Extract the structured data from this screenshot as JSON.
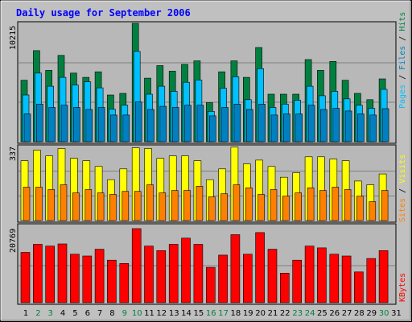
{
  "title": "Daily usage for September 2006",
  "colors": {
    "background": "#C0C0C0",
    "plot": "#B8B8B8",
    "grid": "#808080",
    "title": "#0000FF",
    "hits": "#008040",
    "files": "#00C0FF",
    "pages": "#0080C0",
    "visits": "#FFFF00",
    "sites": "#FF8000",
    "kbytes": "#FF0000",
    "weekday_label": "#000000",
    "weekend_label": "#008040"
  },
  "chart_data": [
    {
      "type": "bar",
      "panel": "hits-files-pages",
      "y_max_label": "10215",
      "ylim": [
        0,
        10215
      ],
      "grid": true,
      "categories": [
        "1",
        "2",
        "3",
        "4",
        "5",
        "6",
        "7",
        "8",
        "9",
        "10",
        "11",
        "12",
        "13",
        "14",
        "15",
        "16",
        "17",
        "18",
        "19",
        "20",
        "21",
        "22",
        "23",
        "24",
        "25",
        "26",
        "27",
        "28",
        "29",
        "30",
        "31"
      ],
      "weekend_days": [
        2,
        3,
        9,
        10,
        16,
        17,
        23,
        24,
        30
      ],
      "series": [
        {
          "name": "Hits",
          "color": "#008040",
          "values": [
            5300,
            7860,
            6160,
            7450,
            5920,
            5550,
            6030,
            4030,
            4170,
            10215,
            5480,
            6570,
            6090,
            6670,
            6980,
            3360,
            6030,
            6980,
            5550,
            8130,
            4100,
            4100,
            4100,
            7090,
            6160,
            6930,
            5300,
            4170,
            3630,
            5420,
            null
          ]
        },
        {
          "name": "Files",
          "color": "#00C0FF",
          "values": [
            4030,
            5920,
            4790,
            5550,
            4890,
            5170,
            4650,
            2810,
            3150,
            7790,
            4100,
            4790,
            4340,
            5130,
            5320,
            2620,
            4610,
            5600,
            3630,
            6300,
            2950,
            3240,
            3570,
            4790,
            3970,
            4340,
            3700,
            3150,
            2880,
            4520,
            null
          ]
        },
        {
          "name": "Pages",
          "color": "#0080C0",
          "values": [
            2400,
            3240,
            2950,
            3150,
            2950,
            2780,
            2950,
            2300,
            2300,
            3430,
            2780,
            3050,
            2950,
            3150,
            3150,
            2230,
            2950,
            3240,
            2780,
            3240,
            2300,
            2400,
            2400,
            3150,
            2780,
            2880,
            2650,
            2400,
            2300,
            2850,
            null
          ]
        }
      ]
    },
    {
      "type": "bar",
      "panel": "visits-sites",
      "y_max_label": "337",
      "ylim": [
        0,
        337
      ],
      "grid": true,
      "categories": [
        "1",
        "2",
        "3",
        "4",
        "5",
        "6",
        "7",
        "8",
        "9",
        "10",
        "11",
        "12",
        "13",
        "14",
        "15",
        "16",
        "17",
        "18",
        "19",
        "20",
        "21",
        "22",
        "23",
        "24",
        "25",
        "26",
        "27",
        "28",
        "29",
        "30",
        "31"
      ],
      "series": [
        {
          "name": "Visits",
          "color": "#FFFF00",
          "values": [
            272,
            320,
            294,
            328,
            283,
            272,
            246,
            186,
            235,
            331,
            328,
            283,
            294,
            294,
            272,
            186,
            235,
            334,
            258,
            275,
            246,
            197,
            218,
            290,
            290,
            280,
            272,
            180,
            163,
            212,
            null
          ]
        },
        {
          "name": "Sites",
          "color": "#FF8000",
          "values": [
            152,
            152,
            141,
            163,
            126,
            141,
            126,
            119,
            133,
            133,
            163,
            126,
            137,
            137,
            156,
            108,
            122,
            163,
            149,
            119,
            141,
            111,
            126,
            149,
            137,
            152,
            141,
            111,
            86,
            137,
            null
          ]
        }
      ]
    },
    {
      "type": "bar",
      "panel": "kbytes",
      "y_max_label": "20769",
      "ylim": [
        0,
        20769
      ],
      "grid": true,
      "categories": [
        "1",
        "2",
        "3",
        "4",
        "5",
        "6",
        "7",
        "8",
        "9",
        "10",
        "11",
        "12",
        "13",
        "14",
        "15",
        "16",
        "17",
        "18",
        "19",
        "20",
        "21",
        "22",
        "23",
        "24",
        "25",
        "26",
        "27",
        "28",
        "29",
        "30",
        "31"
      ],
      "series": [
        {
          "name": "KBytes",
          "color": "#FF0000",
          "values": [
            14100,
            16370,
            15870,
            16470,
            13590,
            13100,
            15000,
            11910,
            11000,
            20769,
            15870,
            14600,
            16370,
            18100,
            16370,
            9920,
            13350,
            19080,
            13590,
            19660,
            15000,
            8280,
            11910,
            15870,
            15370,
            13590,
            13100,
            8630,
            12400,
            14600,
            null
          ]
        }
      ]
    }
  ]
}
